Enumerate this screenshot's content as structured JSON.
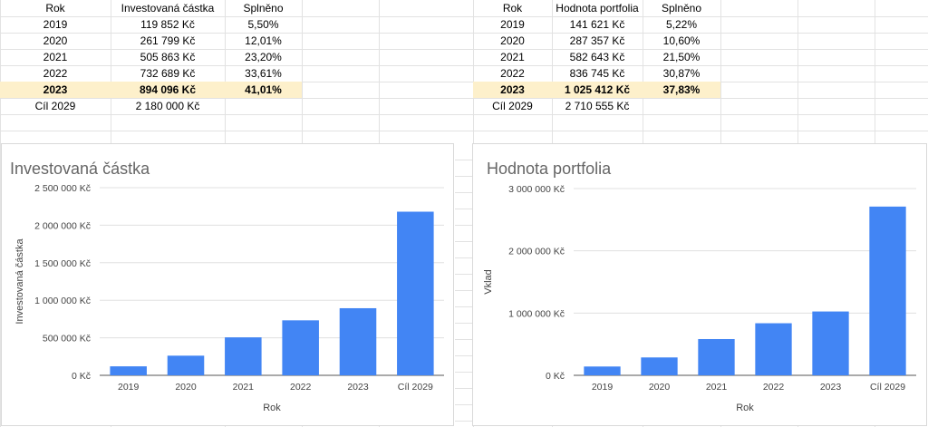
{
  "tables": [
    {
      "headers": [
        "Rok",
        "Investovaná částka",
        "Splněno"
      ],
      "rows": [
        [
          "2019",
          "119 852 Kč",
          "5,50%"
        ],
        [
          "2020",
          "261 799 Kč",
          "12,01%"
        ],
        [
          "2021",
          "505 863 Kč",
          "23,20%"
        ],
        [
          "2022",
          "732 689 Kč",
          "33,61%"
        ],
        [
          "2023",
          "894 096 Kč",
          "41,01%"
        ],
        [
          "Cíl 2029",
          "2 180 000 Kč",
          ""
        ]
      ],
      "highlight_row": 4
    },
    {
      "headers": [
        "Rok",
        "Hodnota portfolia",
        "Splněno"
      ],
      "rows": [
        [
          "2019",
          "141 621 Kč",
          "5,22%"
        ],
        [
          "2020",
          "287 357 Kč",
          "10,60%"
        ],
        [
          "2021",
          "582 643 Kč",
          "21,50%"
        ],
        [
          "2022",
          "836 745 Kč",
          "30,87%"
        ],
        [
          "2023",
          "1 025 412 Kč",
          "37,83%"
        ],
        [
          "Cíl 2029",
          "2 710 555 Kč",
          ""
        ]
      ],
      "highlight_row": 4
    }
  ],
  "colors": {
    "bar": "#4285f4",
    "highlight": "#fdf0cb",
    "grid": "#e0e0e0",
    "title": "#666666",
    "axis_text": "#444444"
  },
  "chart_data": [
    {
      "type": "bar",
      "title": "Investovaná částka",
      "xlabel": "Rok",
      "ylabel": "Investovaná částka",
      "categories": [
        "2019",
        "2020",
        "2021",
        "2022",
        "2023",
        "Cíl 2029"
      ],
      "values": [
        119852,
        261799,
        505863,
        732689,
        894096,
        2180000
      ],
      "ylim": [
        0,
        2500000
      ],
      "yticks": [
        0,
        500000,
        1000000,
        1500000,
        2000000,
        2500000
      ],
      "ytick_labels": [
        "0 Kč",
        "500 000 Kč",
        "1 000 000 Kč",
        "1 500 000 Kč",
        "2 000 000 Kč",
        "2 500 000 Kč"
      ],
      "grid": true,
      "legend": "none"
    },
    {
      "type": "bar",
      "title": "Hodnota portfolia",
      "xlabel": "Rok",
      "ylabel": "Vklad",
      "categories": [
        "2019",
        "2020",
        "2021",
        "2022",
        "2023",
        "Cíl 2029"
      ],
      "values": [
        141621,
        287357,
        582643,
        836745,
        1025412,
        2710555
      ],
      "ylim": [
        0,
        3000000
      ],
      "yticks": [
        0,
        1000000,
        2000000,
        3000000
      ],
      "ytick_labels": [
        "0 Kč",
        "1 000 000 Kč",
        "2 000 000 Kč",
        "3 000 000 Kč"
      ],
      "grid": true,
      "legend": "none"
    }
  ]
}
